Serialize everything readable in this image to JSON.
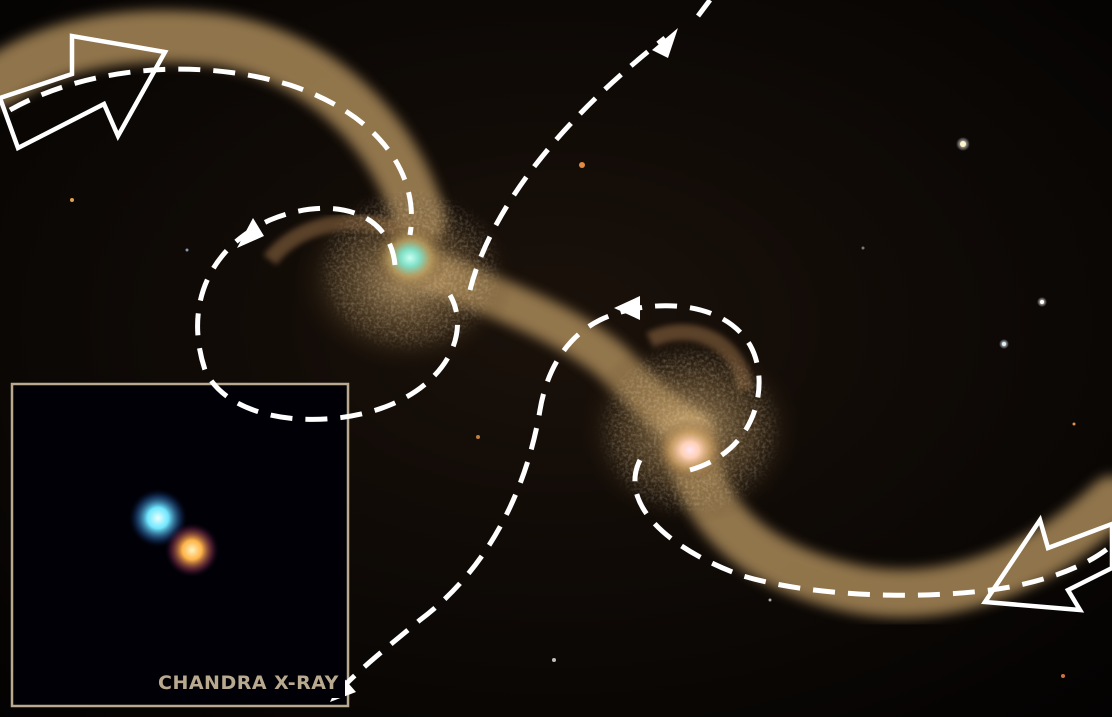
{
  "image": {
    "subject": "interacting-galaxies",
    "inset": {
      "label": "CHANDRA X-RAY"
    },
    "colors": {
      "background": "#050303",
      "tidal_stream": "#c9a877",
      "dashed_arrows": "#ffffff",
      "inset_frame": "#b8a98f",
      "xray_source_1": "#6fe6ff",
      "xray_source_2": "#ffb347"
    }
  }
}
